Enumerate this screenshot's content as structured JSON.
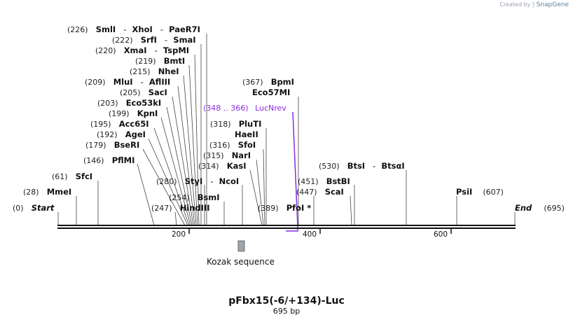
{
  "brand": {
    "prefix": "Created by",
    "name": "SnapGene"
  },
  "title": "pFbx15(-6/+134)-Luc",
  "subtitle": "695 bp",
  "ends": {
    "start_label": "Start",
    "start_pos": "(0)",
    "end_label": "End",
    "end_pos": "(695)"
  },
  "ticks": [
    "200",
    "400",
    "600"
  ],
  "primer": {
    "range": "(348 .. 366)",
    "name": "LucNrev"
  },
  "feature": {
    "name": "Kozak sequence"
  },
  "sites": {
    "smi_xho_pae": {
      "pos": "(226)",
      "name": "SmlI",
      "name2": "XhoI",
      "name3": "PaeR7I"
    },
    "srf_sma": {
      "pos": "(222)",
      "name": "SrfI",
      "name2": "SmaI"
    },
    "xma_tsp": {
      "pos": "(220)",
      "name": "XmaI",
      "name2": "TspMI"
    },
    "bmt": {
      "pos": "(219)",
      "name": "BmtI"
    },
    "nhe": {
      "pos": "(215)",
      "name": "NheI"
    },
    "mlu_afl": {
      "pos": "(209)",
      "name": "MluI",
      "name2": "AflIII"
    },
    "sac": {
      "pos": "(205)",
      "name": "SacI"
    },
    "eco53k": {
      "pos": "(203)",
      "name": "Eco53kI"
    },
    "kpn": {
      "pos": "(199)",
      "name": "KpnI"
    },
    "acc65": {
      "pos": "(195)",
      "name": "Acc65I"
    },
    "age": {
      "pos": "(192)",
      "name": "AgeI"
    },
    "bser": {
      "pos": "(179)",
      "name": "BseRI"
    },
    "pflm": {
      "pos": "(146)",
      "name": "PflMI"
    },
    "sfc": {
      "pos": "(61)",
      "name": "SfcI"
    },
    "mme": {
      "pos": "(28)",
      "name": "MmeI"
    },
    "bpm": {
      "pos": "(367)",
      "name": "BpmI"
    },
    "eco57m": {
      "name": "Eco57MI"
    },
    "plut": {
      "pos": "(318)",
      "name": "PluTI"
    },
    "hae2": {
      "name": "HaeII"
    },
    "sfo": {
      "pos": "(316)",
      "name": "SfoI"
    },
    "nar": {
      "pos": "(315)",
      "name": "NarI"
    },
    "kas": {
      "pos": "(314)",
      "name": "KasI"
    },
    "sty_nco": {
      "pos": "(280)",
      "name": "StyI",
      "name2": "NcoI"
    },
    "bsm": {
      "pos": "(254)",
      "name": "BsmI"
    },
    "hind3": {
      "pos": "(247)",
      "name": "HindIII"
    },
    "pfo": {
      "pos": "(389)",
      "name": "PfoI *"
    },
    "bts": {
      "pos": "(530)",
      "name": "BtsI",
      "name2": "BtsαI"
    },
    "bstb": {
      "pos": "(451)",
      "name": "BstBI"
    },
    "sca": {
      "pos": "(447)",
      "name": "ScaI"
    },
    "psi": {
      "name": "PsiI",
      "pos": "(607)"
    }
  }
}
